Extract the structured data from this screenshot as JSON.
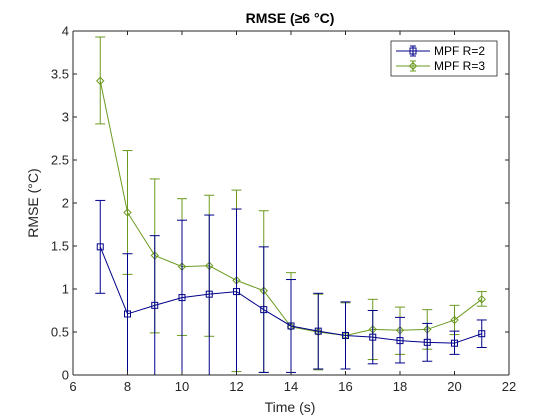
{
  "chart_data": {
    "type": "line",
    "title": "RMSE (≥6 °C)",
    "xlabel": "Time (s)",
    "ylabel": "RMSE (°C)",
    "xlim": [
      6,
      22
    ],
    "ylim": [
      0,
      4
    ],
    "xticks": [
      "6",
      "8",
      "10",
      "12",
      "14",
      "16",
      "18",
      "20",
      "22"
    ],
    "yticks": [
      "0",
      "0.5",
      "1",
      "1.5",
      "2",
      "2.5",
      "3",
      "3.5",
      "4"
    ],
    "grid": false,
    "legend_position": "top-right",
    "x": [
      7,
      8,
      9,
      10,
      11,
      12,
      13,
      14,
      15,
      16,
      17,
      18,
      19,
      20,
      21
    ],
    "series": [
      {
        "name": "MPF R=2",
        "color": "#00008b",
        "marker": "square",
        "values": [
          1.49,
          0.71,
          0.81,
          0.9,
          0.94,
          0.97,
          0.76,
          0.57,
          0.51,
          0.46,
          0.44,
          0.4,
          0.38,
          0.37,
          0.48
        ],
        "error_low": [
          0.95,
          0.0,
          0.0,
          0.0,
          0.0,
          0.0,
          0.03,
          0.03,
          0.07,
          0.07,
          0.13,
          0.14,
          0.16,
          0.24,
          0.32
        ],
        "error_high": [
          2.03,
          1.41,
          1.62,
          1.8,
          1.86,
          1.93,
          1.49,
          1.11,
          0.95,
          0.85,
          0.75,
          0.67,
          0.6,
          0.51,
          0.64
        ]
      },
      {
        "name": "MPF R=3",
        "color": "#6b9a1f",
        "marker": "diamond",
        "values": [
          3.42,
          1.89,
          1.39,
          1.26,
          1.27,
          1.1,
          0.98,
          0.56,
          0.5,
          0.46,
          0.53,
          0.52,
          0.53,
          0.64,
          0.88
        ],
        "error_low": [
          2.92,
          1.17,
          0.49,
          0.46,
          0.45,
          0.04,
          0.03,
          0.0,
          0.06,
          0.07,
          0.18,
          0.24,
          0.3,
          0.47,
          0.8
        ],
        "error_high": [
          3.93,
          2.61,
          2.28,
          2.05,
          2.09,
          2.15,
          1.91,
          1.19,
          0.94,
          0.84,
          0.88,
          0.79,
          0.76,
          0.81,
          0.97
        ]
      }
    ]
  }
}
